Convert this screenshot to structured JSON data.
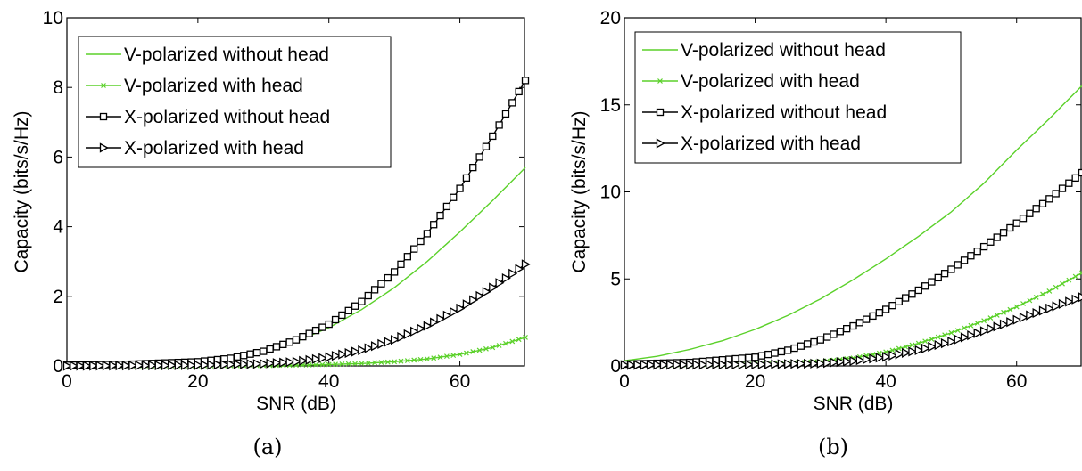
{
  "colors": {
    "green": "#5bd12a",
    "black": "#000000"
  },
  "chart_data": [
    {
      "type": "line",
      "caption": "(a)",
      "xlabel": "SNR (dB)",
      "ylabel": "Capacity (bits/s/Hz)",
      "xlim": [
        0,
        70
      ],
      "ylim": [
        0,
        10
      ],
      "xticks": [
        0,
        20,
        40,
        60
      ],
      "yticks": [
        0,
        2,
        4,
        6,
        8,
        10
      ],
      "grid": false,
      "legend_position": "top-left",
      "series": [
        {
          "name": "V-polarized without head",
          "color": "#5bd12a",
          "marker": "none",
          "x": [
            0,
            10,
            20,
            25,
            30,
            35,
            40,
            45,
            50,
            55,
            60,
            65,
            70
          ],
          "y": [
            0.01,
            0.04,
            0.12,
            0.22,
            0.4,
            0.7,
            1.1,
            1.62,
            2.25,
            3.0,
            3.85,
            4.75,
            5.7
          ]
        },
        {
          "name": "V-polarized with head",
          "color": "#5bd12a",
          "marker": "x",
          "x": [
            0,
            10,
            20,
            30,
            35,
            40,
            45,
            50,
            55,
            60,
            65,
            70
          ],
          "y": [
            0.0,
            0.0,
            0.0,
            0.01,
            0.02,
            0.04,
            0.07,
            0.12,
            0.2,
            0.33,
            0.53,
            0.82
          ]
        },
        {
          "name": "X-polarized without head",
          "color": "#000000",
          "marker": "square",
          "x": [
            0,
            10,
            20,
            25,
            30,
            35,
            40,
            45,
            50,
            55,
            60,
            65,
            70
          ],
          "y": [
            0.02,
            0.05,
            0.12,
            0.22,
            0.42,
            0.75,
            1.2,
            1.85,
            2.7,
            3.8,
            5.1,
            6.6,
            8.2
          ]
        },
        {
          "name": "X-polarized with head",
          "color": "#000000",
          "marker": "triangle-right",
          "x": [
            0,
            10,
            20,
            30,
            35,
            40,
            45,
            50,
            55,
            60,
            65,
            70
          ],
          "y": [
            0.0,
            0.01,
            0.02,
            0.06,
            0.12,
            0.25,
            0.45,
            0.75,
            1.15,
            1.65,
            2.25,
            2.92
          ]
        }
      ]
    },
    {
      "type": "line",
      "caption": "(b)",
      "xlabel": "SNR (dB)",
      "ylabel": "Capacity (bits/s/Hz)",
      "xlim": [
        0,
        70
      ],
      "ylim": [
        0,
        20
      ],
      "xticks": [
        0,
        20,
        40,
        60
      ],
      "yticks": [
        0,
        5,
        10,
        15,
        20
      ],
      "grid": false,
      "legend_position": "top-left",
      "series": [
        {
          "name": "V-polarized  without head",
          "color": "#5bd12a",
          "marker": "none",
          "x": [
            0,
            5,
            10,
            15,
            20,
            25,
            30,
            35,
            40,
            45,
            50,
            55,
            60,
            65,
            70
          ],
          "y": [
            0.3,
            0.55,
            0.95,
            1.45,
            2.1,
            2.9,
            3.85,
            4.95,
            6.15,
            7.45,
            8.85,
            10.5,
            12.4,
            14.2,
            16.1
          ]
        },
        {
          "name": "V-polarized with head",
          "color": "#5bd12a",
          "marker": "x",
          "x": [
            0,
            10,
            20,
            30,
            35,
            40,
            45,
            50,
            55,
            60,
            65,
            70
          ],
          "y": [
            0.05,
            0.07,
            0.1,
            0.25,
            0.45,
            0.8,
            1.3,
            1.9,
            2.6,
            3.4,
            4.3,
            5.35
          ]
        },
        {
          "name": "X-polarized without head",
          "color": "#000000",
          "marker": "square",
          "x": [
            0,
            10,
            20,
            25,
            30,
            35,
            40,
            45,
            50,
            55,
            60,
            65,
            70
          ],
          "y": [
            0.1,
            0.2,
            0.5,
            0.9,
            1.5,
            2.3,
            3.25,
            4.35,
            5.55,
            6.85,
            8.2,
            9.6,
            11.1
          ]
        },
        {
          "name": "X-polarized with head",
          "color": "#000000",
          "marker": "triangle-right",
          "x": [
            0,
            10,
            20,
            30,
            35,
            40,
            45,
            50,
            55,
            60,
            65,
            70
          ],
          "y": [
            0.05,
            0.06,
            0.08,
            0.14,
            0.28,
            0.52,
            0.9,
            1.4,
            2.0,
            2.65,
            3.3,
            3.95
          ]
        }
      ]
    }
  ]
}
